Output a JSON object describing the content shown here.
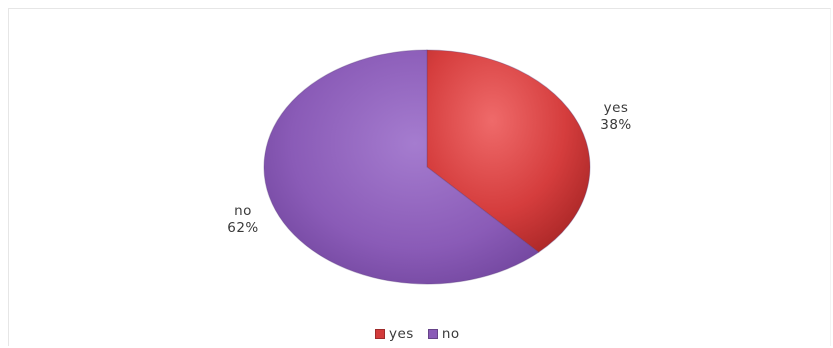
{
  "chart_data": {
    "type": "pie",
    "title": "",
    "slices": [
      {
        "label": "yes",
        "value": 38,
        "value_label": "38%",
        "color": "#d33b3b"
      },
      {
        "label": "no",
        "value": 62,
        "value_label": "62%",
        "color": "#8a5bb7"
      }
    ],
    "legend": {
      "placement": "bottom",
      "entries": [
        "yes",
        "no"
      ]
    }
  }
}
